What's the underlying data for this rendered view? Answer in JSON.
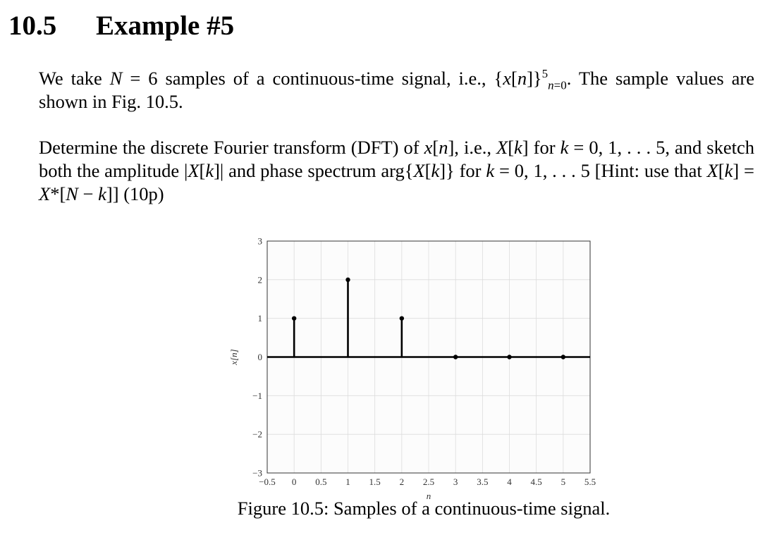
{
  "section": {
    "number": "10.5",
    "title": "Example #5"
  },
  "p1": {
    "a": "We take ",
    "N": "N",
    "b": " = 6 samples of a continuous-time signal, i.e., {",
    "x": "x",
    "c": "[",
    "n": "n",
    "d": "]}",
    "sup": "5",
    "sub_n": "n",
    "sub_rest": "=0",
    "e": ". The sample values are shown in Fig. 10.5."
  },
  "p2": {
    "a": "Determine the discrete Fourier transform (DFT) of ",
    "x": "x",
    "b": "[",
    "n": "n",
    "c": "], i.e., ",
    "X": "X",
    "d": "[",
    "k": "k",
    "e": "] for ",
    "k2": "k",
    "f": " = 0, 1, . . . 5, and sketch both the amplitude |",
    "X2": "X",
    "g": "[",
    "k3": "k",
    "h": "]| and phase spectrum arg{",
    "X3": "X",
    "i": "[",
    "k4": "k",
    "j": "]} for ",
    "k5": "k",
    "l": " = 0, 1, . . . 5 [Hint: use that ",
    "X4": "X",
    "m": "[",
    "k6": "k",
    "o": "] = ",
    "X5": "X",
    "p": "*[",
    "N2": "N",
    "q": " − ",
    "k7": "k",
    "r": "]] (10p)"
  },
  "caption": "Figure 10.5: Samples of a continuous-time signal.",
  "chart_data": {
    "type": "stem",
    "title": "",
    "xlabel": "n",
    "ylabel": "x[n]",
    "xlim": [
      -0.5,
      5.5
    ],
    "ylim": [
      -3,
      3
    ],
    "xticks": [
      -0.5,
      0,
      0.5,
      1,
      1.5,
      2,
      2.5,
      3,
      3.5,
      4,
      4.5,
      5,
      5.5
    ],
    "xtick_labels": [
      "−0.5",
      "0",
      "0.5",
      "1",
      "1.5",
      "2",
      "2.5",
      "3",
      "3.5",
      "4",
      "4.5",
      "5",
      "5.5"
    ],
    "yticks": [
      -3,
      -2,
      -1,
      0,
      1,
      2,
      3
    ],
    "ytick_labels": [
      "−3",
      "−2",
      "−1",
      "0",
      "1",
      "2",
      "3"
    ],
    "grid": true,
    "x": [
      0,
      1,
      2,
      3,
      4,
      5
    ],
    "values": [
      1,
      2,
      1,
      0,
      0,
      0
    ],
    "colors": {
      "stem": "#000000",
      "grid": "#dcdcdc",
      "axes": "#333333",
      "background": "#fcfcfc",
      "tick_text": "#333333"
    }
  }
}
